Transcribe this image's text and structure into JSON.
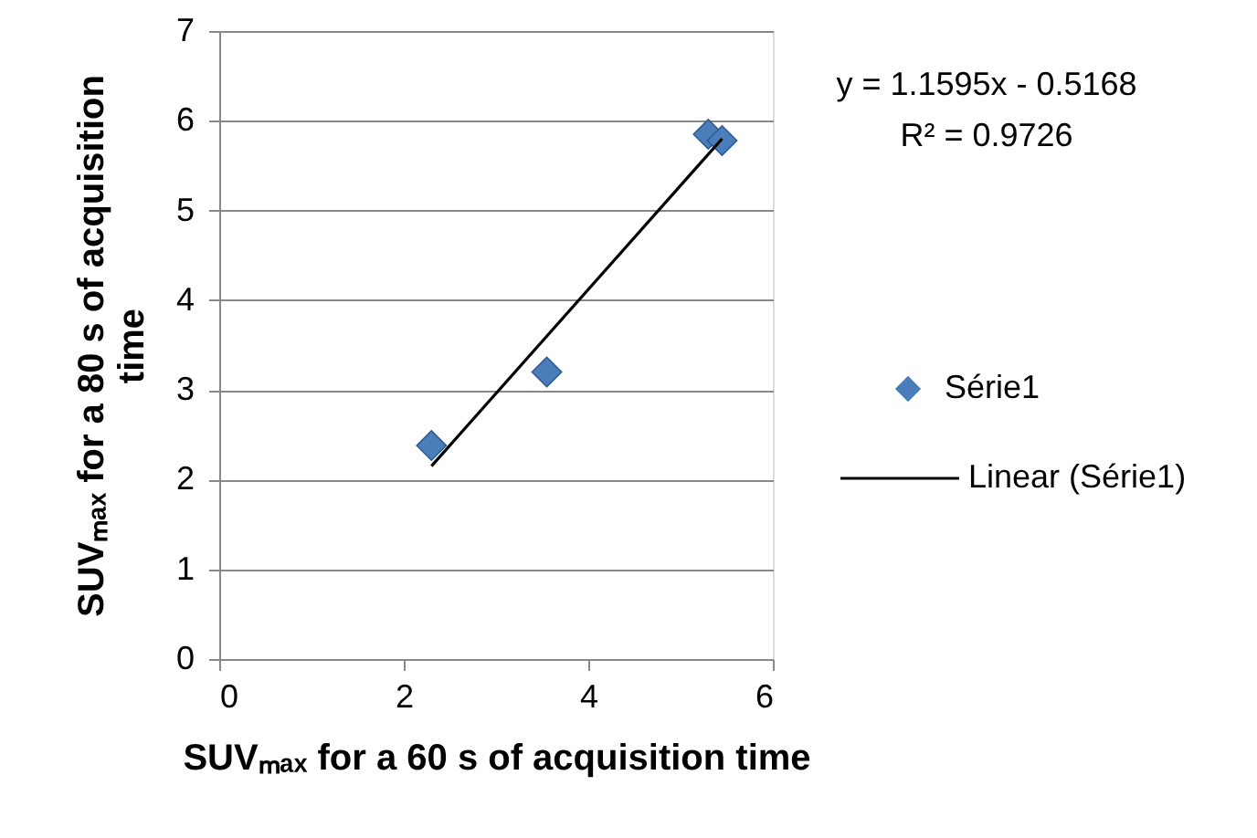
{
  "chart_data": {
    "type": "scatter",
    "xlabel": "SUVₘₐₓ for a 60 s of acquisition time",
    "ylabel": "SUVₘₐₓ for a 80 s of acquisition time",
    "xlim": [
      0,
      6
    ],
    "xticks": [
      0,
      2,
      4,
      6
    ],
    "ylim": [
      0,
      7
    ],
    "yticks": [
      0,
      1,
      2,
      3,
      4,
      5,
      6,
      7
    ],
    "grid": "y",
    "legend": "right",
    "series": [
      {
        "name": "Série1",
        "marker": "diamond",
        "color": "#4a7ebb",
        "x": [
          2.3,
          3.55,
          5.3,
          5.45
        ],
        "values": [
          2.38,
          3.2,
          5.85,
          5.78
        ]
      },
      {
        "name": "Linear (Série1)",
        "type": "line",
        "line_style": "solid",
        "color": "#000000",
        "x": [
          2.3,
          5.45
        ],
        "values": [
          2.15,
          5.8
        ]
      }
    ],
    "annotations": [
      "y = 1.1595x - 0.5168",
      "R² = 0.9726"
    ]
  }
}
